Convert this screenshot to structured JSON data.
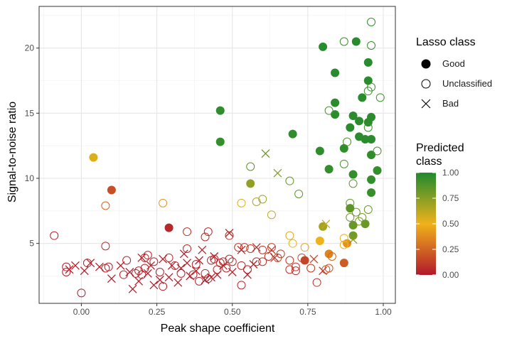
{
  "chart_data": {
    "type": "scatter",
    "xlabel": "Peak shape coefficient",
    "ylabel": "Signal-to-noise ratio",
    "xlim": [
      -0.14,
      1.04
    ],
    "ylim": [
      0.4,
      23.2
    ],
    "x_ticks": [
      0.0,
      0.25,
      0.5,
      0.75,
      1.0
    ],
    "x_tick_labels": [
      "0.00",
      "0.25",
      "0.50",
      "0.75",
      "1.00"
    ],
    "y_ticks": [
      5,
      10,
      15,
      20
    ],
    "y_tick_labels": [
      "5",
      "10",
      "15",
      "20"
    ],
    "grid": true,
    "legend_placement": "right",
    "shape_legend": {
      "title": "Lasso class",
      "entries": [
        {
          "label": "Good",
          "shape": "filled-circle"
        },
        {
          "label": "Unclassified",
          "shape": "open-circle"
        },
        {
          "label": "Bad",
          "shape": "cross"
        }
      ]
    },
    "color_legend": {
      "title_lines": [
        "Predicted",
        "class"
      ],
      "range": [
        0,
        1
      ],
      "ticks": [
        1.0,
        0.75,
        0.5,
        0.25,
        0.0
      ],
      "tick_labels": [
        "1.00",
        "0.75",
        "0.50",
        "0.25",
        "0.00"
      ],
      "gradient": [
        "#b2182b",
        "#f0b21a",
        "#1e8a2e"
      ]
    },
    "series": [
      {
        "class": "Good",
        "points": [
          {
            "x": 0.8,
            "y": 20.1,
            "p": 0.98
          },
          {
            "x": 0.91,
            "y": 20.5,
            "p": 0.98
          },
          {
            "x": 0.95,
            "y": 18.9,
            "p": 0.98
          },
          {
            "x": 0.84,
            "y": 18.1,
            "p": 0.98
          },
          {
            "x": 0.95,
            "y": 17.5,
            "p": 0.97
          },
          {
            "x": 0.93,
            "y": 16.2,
            "p": 0.97
          },
          {
            "x": 0.84,
            "y": 15.8,
            "p": 0.97
          },
          {
            "x": 0.84,
            "y": 14.9,
            "p": 0.97
          },
          {
            "x": 0.46,
            "y": 15.2,
            "p": 0.96
          },
          {
            "x": 0.9,
            "y": 14.8,
            "p": 0.97
          },
          {
            "x": 0.96,
            "y": 14.7,
            "p": 0.97
          },
          {
            "x": 0.92,
            "y": 14.4,
            "p": 0.97
          },
          {
            "x": 0.95,
            "y": 14.3,
            "p": 0.97
          },
          {
            "x": 0.89,
            "y": 13.9,
            "p": 0.97
          },
          {
            "x": 0.7,
            "y": 13.4,
            "p": 0.96
          },
          {
            "x": 0.92,
            "y": 13.2,
            "p": 0.97
          },
          {
            "x": 0.94,
            "y": 13.0,
            "p": 0.97
          },
          {
            "x": 0.96,
            "y": 13.0,
            "p": 0.97
          },
          {
            "x": 0.46,
            "y": 12.8,
            "p": 0.95
          },
          {
            "x": 0.79,
            "y": 12.1,
            "p": 0.96
          },
          {
            "x": 0.87,
            "y": 12.3,
            "p": 0.96
          },
          {
            "x": 0.96,
            "y": 11.8,
            "p": 0.96
          },
          {
            "x": 0.82,
            "y": 10.7,
            "p": 0.95
          },
          {
            "x": 0.9,
            "y": 10.3,
            "p": 0.95
          },
          {
            "x": 0.98,
            "y": 10.6,
            "p": 0.95
          },
          {
            "x": 0.96,
            "y": 9.9,
            "p": 0.95
          },
          {
            "x": 0.96,
            "y": 8.9,
            "p": 0.94
          },
          {
            "x": 0.89,
            "y": 7.7,
            "p": 0.85
          },
          {
            "x": 0.9,
            "y": 6.4,
            "p": 0.82
          },
          {
            "x": 0.8,
            "y": 6.3,
            "p": 0.68
          },
          {
            "x": 0.9,
            "y": 5.6,
            "p": 0.8
          },
          {
            "x": 0.94,
            "y": 6.5,
            "p": 0.82
          },
          {
            "x": 0.56,
            "y": 9.6,
            "p": 0.72
          },
          {
            "x": 0.04,
            "y": 11.6,
            "p": 0.55
          },
          {
            "x": 0.1,
            "y": 9.1,
            "p": 0.18
          },
          {
            "x": 0.29,
            "y": 6.2,
            "p": 0.05
          },
          {
            "x": 0.79,
            "y": 5.2,
            "p": 0.5
          },
          {
            "x": 0.82,
            "y": 4.2,
            "p": 0.35
          },
          {
            "x": 0.87,
            "y": 3.5,
            "p": 0.22
          },
          {
            "x": 0.74,
            "y": 3.7,
            "p": 0.15
          },
          {
            "x": 0.88,
            "y": 5.0,
            "p": 0.4
          }
        ]
      },
      {
        "class": "Unclassified",
        "points": [
          {
            "x": 0.96,
            "y": 22.0,
            "p": 0.95
          },
          {
            "x": 0.87,
            "y": 20.5,
            "p": 0.93
          },
          {
            "x": 0.96,
            "y": 20.2,
            "p": 0.94
          },
          {
            "x": 0.95,
            "y": 16.7,
            "p": 0.93
          },
          {
            "x": 0.96,
            "y": 17.0,
            "p": 0.93
          },
          {
            "x": 0.99,
            "y": 16.2,
            "p": 0.93
          },
          {
            "x": 0.82,
            "y": 15.2,
            "p": 0.9
          },
          {
            "x": 0.95,
            "y": 13.9,
            "p": 0.92
          },
          {
            "x": 0.88,
            "y": 12.8,
            "p": 0.9
          },
          {
            "x": 0.98,
            "y": 12.1,
            "p": 0.91
          },
          {
            "x": 0.87,
            "y": 11.1,
            "p": 0.9
          },
          {
            "x": 0.56,
            "y": 10.9,
            "p": 0.86
          },
          {
            "x": 0.69,
            "y": 9.8,
            "p": 0.84
          },
          {
            "x": 0.9,
            "y": 9.6,
            "p": 0.86
          },
          {
            "x": 0.72,
            "y": 8.8,
            "p": 0.84
          },
          {
            "x": 0.6,
            "y": 8.4,
            "p": 0.7
          },
          {
            "x": 0.58,
            "y": 8.2,
            "p": 0.65
          },
          {
            "x": 0.89,
            "y": 8.1,
            "p": 0.84
          },
          {
            "x": 0.91,
            "y": 7.4,
            "p": 0.82
          },
          {
            "x": 0.95,
            "y": 7.6,
            "p": 0.82
          },
          {
            "x": 0.93,
            "y": 7.0,
            "p": 0.8
          },
          {
            "x": 0.89,
            "y": 7.0,
            "p": 0.8
          },
          {
            "x": 0.92,
            "y": 6.7,
            "p": 0.79
          },
          {
            "x": 0.63,
            "y": 7.2,
            "p": 0.62
          },
          {
            "x": 0.53,
            "y": 8.1,
            "p": 0.55
          },
          {
            "x": 0.27,
            "y": 8.1,
            "p": 0.4
          },
          {
            "x": 0.08,
            "y": 7.9,
            "p": 0.25
          },
          {
            "x": 0.69,
            "y": 5.6,
            "p": 0.55
          },
          {
            "x": 0.87,
            "y": 5.4,
            "p": 0.52
          },
          {
            "x": 0.7,
            "y": 5.0,
            "p": 0.5
          },
          {
            "x": 0.74,
            "y": 4.7,
            "p": 0.45
          },
          {
            "x": 0.87,
            "y": 4.9,
            "p": 0.5
          },
          {
            "x": -0.09,
            "y": 5.6,
            "p": 0.03
          },
          {
            "x": 0.08,
            "y": 4.8,
            "p": 0.05
          },
          {
            "x": 0.35,
            "y": 5.9,
            "p": 0.08
          },
          {
            "x": 0.41,
            "y": 5.5,
            "p": 0.06
          },
          {
            "x": 0.42,
            "y": 5.9,
            "p": 0.06
          },
          {
            "x": 0.49,
            "y": 5.6,
            "p": 0.08
          },
          {
            "x": 0.54,
            "y": 4.7,
            "p": 0.1
          },
          {
            "x": 0.52,
            "y": 4.7,
            "p": 0.1
          },
          {
            "x": 0.56,
            "y": 4.6,
            "p": 0.12
          },
          {
            "x": 0.63,
            "y": 4.7,
            "p": 0.15
          },
          {
            "x": 0.65,
            "y": 3.9,
            "p": 0.12
          },
          {
            "x": 0.6,
            "y": 3.6,
            "p": 0.08
          },
          {
            "x": 0.69,
            "y": 3.7,
            "p": 0.1
          },
          {
            "x": 0.73,
            "y": 3.9,
            "p": 0.15
          },
          {
            "x": 0.78,
            "y": 2.0,
            "p": 0.1
          },
          {
            "x": 0.81,
            "y": 3.0,
            "p": 0.18
          },
          {
            "x": 0.82,
            "y": 3.1,
            "p": 0.2
          },
          {
            "x": 0.71,
            "y": 3.2,
            "p": 0.1
          },
          {
            "x": 0.53,
            "y": 1.8,
            "p": 0.03
          },
          {
            "x": 0.41,
            "y": 2.7,
            "p": 0.05
          },
          {
            "x": 0.38,
            "y": 3.4,
            "p": 0.04
          },
          {
            "x": 0.35,
            "y": 4.6,
            "p": 0.06
          },
          {
            "x": 0.46,
            "y": 3.5,
            "p": 0.05
          },
          {
            "x": 0.49,
            "y": 3.8,
            "p": 0.06
          },
          {
            "x": 0.48,
            "y": 3.1,
            "p": 0.04
          },
          {
            "x": 0.45,
            "y": 3.0,
            "p": 0.04
          },
          {
            "x": 0.44,
            "y": 3.8,
            "p": 0.05
          },
          {
            "x": 0.43,
            "y": 3.7,
            "p": 0.05
          },
          {
            "x": 0.31,
            "y": 3.3,
            "p": 0.04
          },
          {
            "x": 0.29,
            "y": 3.9,
            "p": 0.05
          },
          {
            "x": 0.27,
            "y": 1.7,
            "p": 0.02
          },
          {
            "x": 0.22,
            "y": 4.1,
            "p": 0.04
          },
          {
            "x": 0.21,
            "y": 3.9,
            "p": 0.04
          },
          {
            "x": 0.18,
            "y": 2.7,
            "p": 0.03
          },
          {
            "x": 0.19,
            "y": 2.9,
            "p": 0.03
          },
          {
            "x": 0.2,
            "y": 2.6,
            "p": 0.03
          },
          {
            "x": 0.21,
            "y": 3.1,
            "p": 0.03
          },
          {
            "x": 0.15,
            "y": 3.7,
            "p": 0.04
          },
          {
            "x": 0.14,
            "y": 2.6,
            "p": 0.03
          },
          {
            "x": 0.09,
            "y": 3.2,
            "p": 0.03
          },
          {
            "x": 0.08,
            "y": 3.1,
            "p": 0.03
          },
          {
            "x": 0.02,
            "y": 3.5,
            "p": 0.03
          },
          {
            "x": -0.05,
            "y": 3.2,
            "p": 0.02
          },
          {
            "x": -0.05,
            "y": 2.8,
            "p": 0.02
          },
          {
            "x": 0.0,
            "y": 1.2,
            "p": 0.01
          },
          {
            "x": 0.24,
            "y": 3.6,
            "p": 0.04
          },
          {
            "x": 0.26,
            "y": 2.8,
            "p": 0.03
          },
          {
            "x": 0.33,
            "y": 2.7,
            "p": 0.03
          },
          {
            "x": 0.39,
            "y": 2.1,
            "p": 0.03
          },
          {
            "x": 0.37,
            "y": 2.6,
            "p": 0.03
          },
          {
            "x": 0.42,
            "y": 2.3,
            "p": 0.03
          },
          {
            "x": 0.47,
            "y": 3.6,
            "p": 0.05
          },
          {
            "x": 0.5,
            "y": 3.6,
            "p": 0.05
          },
          {
            "x": 0.53,
            "y": 3.3,
            "p": 0.05
          },
          {
            "x": 0.55,
            "y": 3.0,
            "p": 0.04
          },
          {
            "x": 0.58,
            "y": 3.6,
            "p": 0.05
          },
          {
            "x": 0.6,
            "y": 4.5,
            "p": 0.07
          },
          {
            "x": 0.62,
            "y": 4.0,
            "p": 0.08
          },
          {
            "x": 0.66,
            "y": 4.2,
            "p": 0.1
          },
          {
            "x": 0.69,
            "y": 3.0,
            "p": 0.08
          },
          {
            "x": 0.71,
            "y": 2.9,
            "p": 0.07
          },
          {
            "x": 0.76,
            "y": 3.1,
            "p": 0.1
          },
          {
            "x": 0.83,
            "y": 4.0,
            "p": 0.25
          }
        ]
      },
      {
        "class": "Bad",
        "points": [
          {
            "x": 0.61,
            "y": 11.9,
            "p": 0.82
          },
          {
            "x": 0.65,
            "y": 10.4,
            "p": 0.76
          },
          {
            "x": 0.81,
            "y": 6.5,
            "p": 0.6
          },
          {
            "x": 0.9,
            "y": 5.3,
            "p": 0.75
          },
          {
            "x": 0.49,
            "y": 5.8,
            "p": 0.06
          },
          {
            "x": 0.63,
            "y": 4.5,
            "p": 0.1
          },
          {
            "x": 0.77,
            "y": 3.8,
            "p": 0.15
          },
          {
            "x": 0.8,
            "y": 2.9,
            "p": 0.1
          },
          {
            "x": 0.64,
            "y": 3.9,
            "p": 0.08
          },
          {
            "x": 0.57,
            "y": 3.4,
            "p": 0.05
          },
          {
            "x": 0.5,
            "y": 2.8,
            "p": 0.04
          },
          {
            "x": 0.47,
            "y": 3.3,
            "p": 0.04
          },
          {
            "x": 0.44,
            "y": 4.0,
            "p": 0.04
          },
          {
            "x": 0.43,
            "y": 2.4,
            "p": 0.03
          },
          {
            "x": 0.4,
            "y": 4.5,
            "p": 0.04
          },
          {
            "x": 0.38,
            "y": 2.9,
            "p": 0.03
          },
          {
            "x": 0.35,
            "y": 3.5,
            "p": 0.03
          },
          {
            "x": 0.36,
            "y": 2.5,
            "p": 0.03
          },
          {
            "x": 0.34,
            "y": 4.2,
            "p": 0.03
          },
          {
            "x": 0.33,
            "y": 3.1,
            "p": 0.03
          },
          {
            "x": 0.32,
            "y": 2.0,
            "p": 0.02
          },
          {
            "x": 0.3,
            "y": 3.3,
            "p": 0.03
          },
          {
            "x": 0.29,
            "y": 2.4,
            "p": 0.02
          },
          {
            "x": 0.27,
            "y": 3.8,
            "p": 0.03
          },
          {
            "x": 0.26,
            "y": 2.2,
            "p": 0.02
          },
          {
            "x": 0.24,
            "y": 1.8,
            "p": 0.02
          },
          {
            "x": 0.23,
            "y": 3.3,
            "p": 0.03
          },
          {
            "x": 0.22,
            "y": 2.7,
            "p": 0.02
          },
          {
            "x": 0.2,
            "y": 3.9,
            "p": 0.03
          },
          {
            "x": 0.19,
            "y": 2.1,
            "p": 0.02
          },
          {
            "x": 0.17,
            "y": 1.5,
            "p": 0.02
          },
          {
            "x": 0.16,
            "y": 2.8,
            "p": 0.02
          },
          {
            "x": 0.13,
            "y": 3.3,
            "p": 0.02
          },
          {
            "x": 0.1,
            "y": 2.3,
            "p": 0.02
          },
          {
            "x": 0.06,
            "y": 3.2,
            "p": 0.02
          },
          {
            "x": 0.03,
            "y": 3.5,
            "p": 0.02
          },
          {
            "x": 0.01,
            "y": 2.9,
            "p": 0.02
          },
          {
            "x": -0.02,
            "y": 3.3,
            "p": 0.02
          },
          {
            "x": -0.04,
            "y": 3.0,
            "p": 0.02
          },
          {
            "x": 0.39,
            "y": 3.7,
            "p": 0.03
          },
          {
            "x": 0.41,
            "y": 2.2,
            "p": 0.02
          },
          {
            "x": 0.45,
            "y": 2.6,
            "p": 0.03
          },
          {
            "x": 0.53,
            "y": 4.5,
            "p": 0.05
          },
          {
            "x": 0.55,
            "y": 2.6,
            "p": 0.03
          },
          {
            "x": 0.58,
            "y": 4.7,
            "p": 0.06
          }
        ]
      }
    ]
  }
}
